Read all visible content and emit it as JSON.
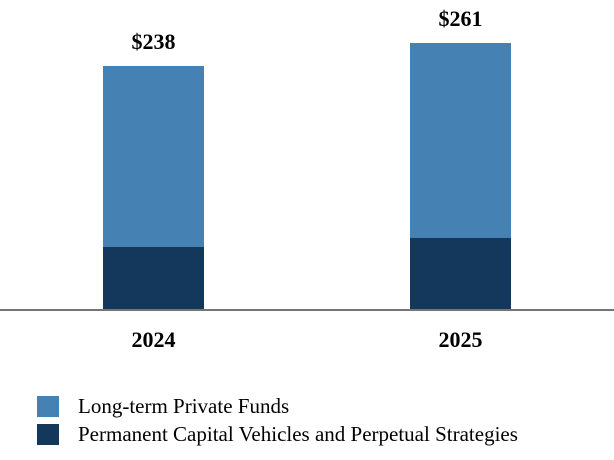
{
  "chart_data": {
    "type": "bar",
    "stacked": true,
    "title": "",
    "xlabel": "",
    "ylabel": "",
    "categories": [
      "2024",
      "2025"
    ],
    "series": [
      {
        "name": "Long-term Private Funds",
        "color": "#4681B4",
        "values": [
          177,
          191
        ]
      },
      {
        "name": "Permanent Capital Vehicles and Perpetual Strategies",
        "color": "#14375C",
        "values": [
          61,
          70
        ]
      }
    ],
    "totals": [
      238,
      261
    ],
    "total_labels": [
      "$238",
      "$261"
    ],
    "ylim": [
      0,
      280
    ],
    "grid": false,
    "y_axis_visible": false,
    "legend_position": "bottom-left",
    "axis_line_color": "#767676"
  }
}
